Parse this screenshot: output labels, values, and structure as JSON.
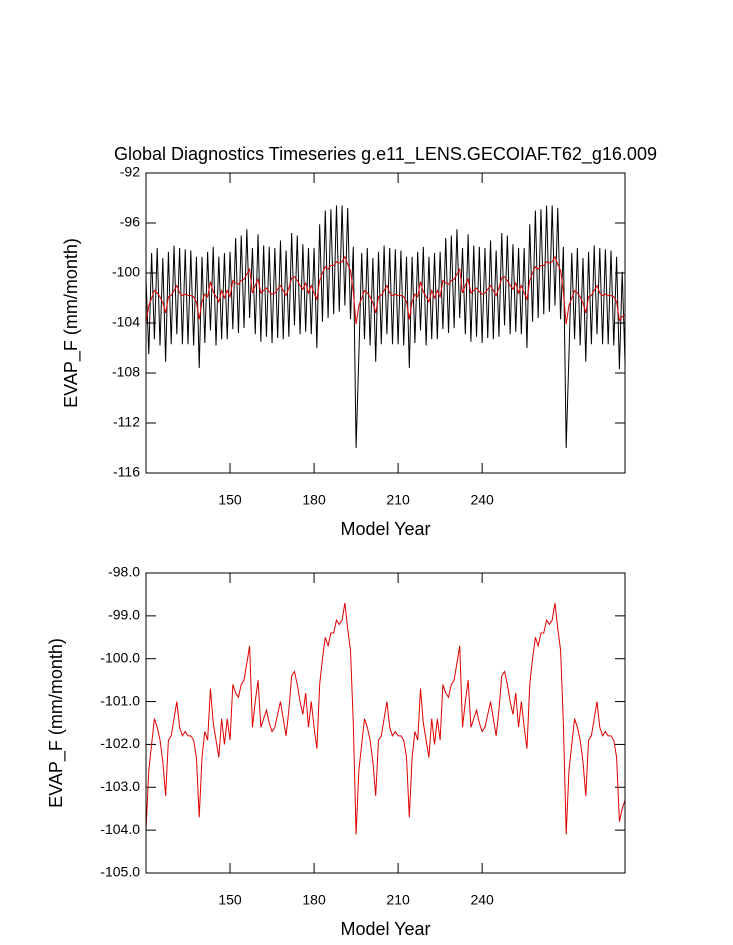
{
  "chart_data": [
    {
      "type": "line",
      "title": "Global Diagnostics Timeseries g.e11_LENS.GECOIAF.T62_g16.009",
      "x_label": "Model Year",
      "y_label": "EVAP_F (mm/month)",
      "xlim": [
        120,
        291
      ],
      "xticks": [
        150,
        180,
        210,
        240
      ],
      "ylim": [
        -116,
        -92
      ],
      "yticks": [
        -116,
        -112,
        -108,
        -104,
        -100,
        -96,
        -92
      ],
      "x": [
        120,
        121,
        122,
        123,
        124,
        125,
        126,
        127,
        128,
        129,
        130,
        131,
        132,
        133,
        134,
        135,
        136,
        137,
        138,
        139,
        140,
        141,
        142,
        143,
        144,
        145,
        146,
        147,
        148,
        149,
        150,
        151,
        152,
        153,
        154,
        155,
        156,
        157,
        158,
        159,
        160,
        161,
        162,
        163,
        164,
        165,
        166,
        167,
        168,
        169,
        170,
        171,
        172,
        173,
        174,
        175,
        176,
        177,
        178,
        179,
        180,
        181,
        182,
        183,
        184,
        185,
        186,
        187,
        188,
        189,
        190,
        191,
        192,
        193,
        194,
        195,
        196,
        197,
        198,
        199,
        200,
        201,
        202,
        203,
        204,
        205,
        206,
        207,
        208,
        209,
        210,
        211,
        212,
        213,
        214,
        215,
        216,
        217,
        218,
        219,
        220,
        221,
        222,
        223,
        224,
        225,
        226,
        227,
        228,
        229,
        230,
        231,
        232,
        233,
        234,
        235,
        236,
        237,
        238,
        239,
        240,
        241,
        242,
        243,
        244,
        245,
        246,
        247,
        248,
        249,
        250,
        251,
        252,
        253,
        254,
        255,
        256,
        257,
        258,
        259,
        260,
        261,
        262,
        263,
        264,
        265,
        266,
        267,
        268,
        269,
        270,
        271,
        272,
        273,
        274,
        275,
        276,
        277,
        278,
        279,
        280,
        281,
        282,
        283,
        284,
        285,
        286,
        287,
        288,
        289,
        290,
        291
      ],
      "series": [
        {
          "color": "#000000",
          "values": [
            -100.4,
            -106.5,
            -98.4,
            -105.3,
            -98.0,
            -105.8,
            -98.8,
            -107.1,
            -98.3,
            -105.7,
            -97.8,
            -104.9,
            -98.0,
            -105.7,
            -98.1,
            -105.7,
            -98.2,
            -105.8,
            -98.7,
            -107.6,
            -98.7,
            -105.6,
            -98.3,
            -104.6,
            -97.9,
            -105.8,
            -98.7,
            -105.3,
            -98.4,
            -105.3,
            -98.3,
            -104.5,
            -97.2,
            -104.8,
            -97.0,
            -104.4,
            -96.5,
            -103.6,
            -98.0,
            -104.9,
            -96.9,
            -105.5,
            -97.8,
            -105.1,
            -97.9,
            -105.6,
            -98.0,
            -105.2,
            -97.4,
            -105.3,
            -98.2,
            -105.1,
            -96.8,
            -104.2,
            -97.0,
            -104.9,
            -97.7,
            -104.7,
            -98.0,
            -104.9,
            -98.0,
            -106.0,
            -96.1,
            -103.9,
            -95.0,
            -103.6,
            -94.9,
            -103.3,
            -94.6,
            -103.1,
            -94.6,
            -102.6,
            -94.8,
            -103.7,
            -97.9,
            -114.0,
            -106.5,
            -98.4,
            -105.3,
            -98.0,
            -105.8,
            -98.8,
            -107.1,
            -98.3,
            -105.7,
            -97.8,
            -104.9,
            -98.0,
            -105.7,
            -98.1,
            -105.7,
            -98.2,
            -105.8,
            -98.7,
            -107.6,
            -98.7,
            -105.6,
            -98.3,
            -104.6,
            -97.9,
            -105.8,
            -98.7,
            -105.3,
            -98.4,
            -105.3,
            -98.3,
            -104.5,
            -97.2,
            -104.8,
            -97.0,
            -104.4,
            -96.5,
            -103.6,
            -98.0,
            -104.9,
            -96.9,
            -105.5,
            -97.8,
            -105.1,
            -97.9,
            -105.6,
            -98.0,
            -105.2,
            -97.4,
            -105.3,
            -98.2,
            -105.1,
            -96.8,
            -104.2,
            -97.0,
            -104.9,
            -97.7,
            -104.7,
            -98.0,
            -104.9,
            -98.0,
            -106.0,
            -96.1,
            -103.9,
            -95.0,
            -103.6,
            -94.9,
            -103.3,
            -94.6,
            -103.1,
            -94.6,
            -102.6,
            -94.8,
            -103.7,
            -97.9,
            -114.0,
            -106.5,
            -98.4,
            -105.3,
            -98.0,
            -105.8,
            -98.8,
            -107.1,
            -98.3,
            -105.7,
            -97.8,
            -104.9,
            -98.0,
            -105.7,
            -98.1,
            -105.7,
            -98.2,
            -105.8,
            -98.7,
            -107.7,
            -99.9,
            -107.2
          ]
        },
        {
          "color": "#e00000",
          "values": [
            -104.0,
            -102.6,
            -102.0,
            -101.4,
            -101.6,
            -101.9,
            -102.4,
            -103.2,
            -101.9,
            -101.8,
            -101.4,
            -101.0,
            -101.6,
            -101.8,
            -101.7,
            -101.8,
            -101.8,
            -101.9,
            -102.3,
            -103.7,
            -102.3,
            -101.7,
            -101.9,
            -100.7,
            -101.5,
            -101.9,
            -102.3,
            -101.4,
            -102.0,
            -101.4,
            -101.9,
            -100.6,
            -100.8,
            -100.9,
            -100.6,
            -100.5,
            -100.1,
            -99.7,
            -101.6,
            -101.0,
            -100.5,
            -101.6,
            -101.4,
            -101.2,
            -101.5,
            -101.7,
            -101.6,
            -101.3,
            -101.0,
            -101.4,
            -101.8,
            -101.2,
            -100.4,
            -100.3,
            -100.6,
            -101.0,
            -101.3,
            -100.8,
            -101.6,
            -101.0,
            -101.6,
            -102.1,
            -100.6,
            -100.0,
            -99.5,
            -99.7,
            -99.4,
            -99.4,
            -99.1,
            -99.2,
            -99.1,
            -98.7,
            -99.3,
            -99.8,
            -101.5,
            -104.1,
            -102.6,
            -102.0,
            -101.4,
            -101.6,
            -101.9,
            -102.4,
            -103.2,
            -101.9,
            -101.8,
            -101.4,
            -101.0,
            -101.6,
            -101.8,
            -101.7,
            -101.8,
            -101.8,
            -101.9,
            -102.3,
            -103.7,
            -102.3,
            -101.7,
            -101.9,
            -100.7,
            -101.5,
            -101.9,
            -102.3,
            -101.4,
            -102.0,
            -101.4,
            -101.9,
            -100.6,
            -100.8,
            -100.9,
            -100.6,
            -100.5,
            -100.1,
            -99.7,
            -101.6,
            -101.0,
            -100.5,
            -101.6,
            -101.4,
            -101.2,
            -101.5,
            -101.7,
            -101.6,
            -101.3,
            -101.0,
            -101.4,
            -101.8,
            -101.2,
            -100.4,
            -100.3,
            -100.6,
            -101.0,
            -101.3,
            -100.8,
            -101.6,
            -101.0,
            -101.6,
            -102.1,
            -100.6,
            -100.0,
            -99.5,
            -99.7,
            -99.4,
            -99.4,
            -99.1,
            -99.2,
            -99.1,
            -98.7,
            -99.3,
            -99.8,
            -101.5,
            -104.1,
            -102.6,
            -102.0,
            -101.4,
            -101.6,
            -101.9,
            -102.4,
            -103.2,
            -101.9,
            -101.8,
            -101.4,
            -101.0,
            -101.6,
            -101.8,
            -101.7,
            -101.8,
            -101.8,
            -101.9,
            -102.3,
            -103.8,
            -103.5,
            -103.3
          ]
        }
      ]
    },
    {
      "type": "line",
      "x_label": "Model Year",
      "y_label": "EVAP_F (mm/month)",
      "xlim": [
        120,
        291
      ],
      "xticks": [
        150,
        180,
        210,
        240
      ],
      "ylim": [
        -105,
        -98
      ],
      "yticks": [
        {
          "value": -105,
          "label": "-105.0"
        },
        {
          "value": -104,
          "label": "-104.0"
        },
        {
          "value": -103,
          "label": "-103.0"
        },
        {
          "value": -102,
          "label": "-102.0"
        },
        {
          "value": -101,
          "label": "-101.0"
        },
        {
          "value": -100,
          "label": "-100.0"
        },
        {
          "value": -99,
          "label": "-99.0"
        },
        {
          "value": -98,
          "label": "-98.0"
        }
      ],
      "x": [
        120,
        121,
        122,
        123,
        124,
        125,
        126,
        127,
        128,
        129,
        130,
        131,
        132,
        133,
        134,
        135,
        136,
        137,
        138,
        139,
        140,
        141,
        142,
        143,
        144,
        145,
        146,
        147,
        148,
        149,
        150,
        151,
        152,
        153,
        154,
        155,
        156,
        157,
        158,
        159,
        160,
        161,
        162,
        163,
        164,
        165,
        166,
        167,
        168,
        169,
        170,
        171,
        172,
        173,
        174,
        175,
        176,
        177,
        178,
        179,
        180,
        181,
        182,
        183,
        184,
        185,
        186,
        187,
        188,
        189,
        190,
        191,
        192,
        193,
        194,
        195,
        196,
        197,
        198,
        199,
        200,
        201,
        202,
        203,
        204,
        205,
        206,
        207,
        208,
        209,
        210,
        211,
        212,
        213,
        214,
        215,
        216,
        217,
        218,
        219,
        220,
        221,
        222,
        223,
        224,
        225,
        226,
        227,
        228,
        229,
        230,
        231,
        232,
        233,
        234,
        235,
        236,
        237,
        238,
        239,
        240,
        241,
        242,
        243,
        244,
        245,
        246,
        247,
        248,
        249,
        250,
        251,
        252,
        253,
        254,
        255,
        256,
        257,
        258,
        259,
        260,
        261,
        262,
        263,
        264,
        265,
        266,
        267,
        268,
        269,
        270,
        271,
        272,
        273,
        274,
        275,
        276,
        277,
        278,
        279,
        280,
        281,
        282,
        283,
        284,
        285,
        286,
        287,
        288,
        289,
        290,
        291
      ],
      "series": [
        {
          "color": "#e00000",
          "values": [
            -104.0,
            -102.6,
            -102.0,
            -101.4,
            -101.6,
            -101.9,
            -102.4,
            -103.2,
            -101.9,
            -101.8,
            -101.4,
            -101.0,
            -101.6,
            -101.8,
            -101.7,
            -101.8,
            -101.8,
            -101.9,
            -102.3,
            -103.7,
            -102.3,
            -101.7,
            -101.9,
            -100.7,
            -101.5,
            -101.9,
            -102.3,
            -101.4,
            -102.0,
            -101.4,
            -101.9,
            -100.6,
            -100.8,
            -100.9,
            -100.6,
            -100.5,
            -100.1,
            -99.7,
            -101.6,
            -101.0,
            -100.5,
            -101.6,
            -101.4,
            -101.2,
            -101.5,
            -101.7,
            -101.6,
            -101.3,
            -101.0,
            -101.4,
            -101.8,
            -101.2,
            -100.4,
            -100.3,
            -100.6,
            -101.0,
            -101.3,
            -100.8,
            -101.6,
            -101.0,
            -101.6,
            -102.1,
            -100.6,
            -100.0,
            -99.5,
            -99.7,
            -99.4,
            -99.4,
            -99.1,
            -99.2,
            -99.1,
            -98.7,
            -99.3,
            -99.8,
            -101.5,
            -104.1,
            -102.6,
            -102.0,
            -101.4,
            -101.6,
            -101.9,
            -102.4,
            -103.2,
            -101.9,
            -101.8,
            -101.4,
            -101.0,
            -101.6,
            -101.8,
            -101.7,
            -101.8,
            -101.8,
            -101.9,
            -102.3,
            -103.7,
            -102.3,
            -101.7,
            -101.9,
            -100.7,
            -101.5,
            -101.9,
            -102.3,
            -101.4,
            -102.0,
            -101.4,
            -101.9,
            -100.6,
            -100.8,
            -100.9,
            -100.6,
            -100.5,
            -100.1,
            -99.7,
            -101.6,
            -101.0,
            -100.5,
            -101.6,
            -101.4,
            -101.2,
            -101.5,
            -101.7,
            -101.6,
            -101.3,
            -101.0,
            -101.4,
            -101.8,
            -101.2,
            -100.4,
            -100.3,
            -100.6,
            -101.0,
            -101.3,
            -100.8,
            -101.6,
            -101.0,
            -101.6,
            -102.1,
            -100.6,
            -100.0,
            -99.5,
            -99.7,
            -99.4,
            -99.4,
            -99.1,
            -99.2,
            -99.1,
            -98.7,
            -99.3,
            -99.8,
            -101.5,
            -104.1,
            -102.6,
            -102.0,
            -101.4,
            -101.6,
            -101.9,
            -102.4,
            -103.2,
            -101.9,
            -101.8,
            -101.4,
            -101.0,
            -101.6,
            -101.8,
            -101.7,
            -101.8,
            -101.8,
            -101.9,
            -102.3,
            -103.8,
            -103.5,
            -103.3
          ]
        }
      ]
    }
  ]
}
